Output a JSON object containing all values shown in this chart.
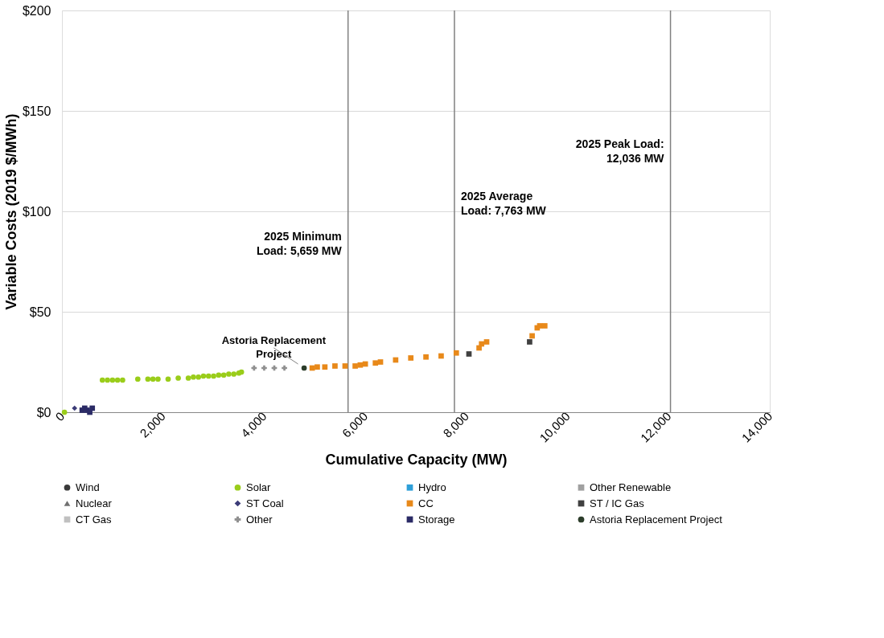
{
  "chart_data": {
    "type": "scatter",
    "xlabel": "Cumulative Capacity (MW)",
    "ylabel": "Variable Costs (2019 $/MWh)",
    "xlim": [
      0,
      14000
    ],
    "xticks": [
      0,
      {
        "value": 2000,
        "label": "2,000"
      },
      {
        "value": 4000,
        "label": "4,000"
      },
      {
        "value": 6000,
        "label": "6,000"
      },
      {
        "value": 8000,
        "label": "8,000"
      },
      {
        "value": 10000,
        "label": "10,000"
      },
      {
        "value": 12000,
        "label": "12,000"
      },
      {
        "value": 14000,
        "label": "14,000"
      }
    ],
    "ylim": [
      0,
      200
    ],
    "yticks": [
      {
        "value": 0,
        "label": "$0"
      },
      {
        "value": 50,
        "label": "$50"
      },
      {
        "value": 100,
        "label": "$100"
      },
      {
        "value": 150,
        "label": "$150"
      },
      {
        "value": 200,
        "label": "$200"
      }
    ],
    "grid": "y",
    "legend": "bottom",
    "ref_lines": [
      {
        "axis": "x",
        "value": 5659,
        "label": "2025 Minimum Load: 5,659 MW",
        "color": "#808080"
      },
      {
        "axis": "x",
        "value": 7763,
        "label": "2025 Average Load: 7,763 MW",
        "color": "#808080"
      },
      {
        "axis": "x",
        "value": 12036,
        "label": "2025 Peak Load: 12,036 MW",
        "color": "#808080"
      }
    ],
    "annotations": [
      {
        "text": "Astoria Replacement Project",
        "x": 4790,
        "y": 22
      }
    ],
    "series": [
      {
        "name": "Wind",
        "color": "#3a3a3a",
        "marker": "circle"
      },
      {
        "name": "Solar",
        "color": "#9acd1a",
        "marker": "circle",
        "x": [
          50,
          800,
          900,
          1000,
          1100,
          1200,
          1500,
          1700,
          1800,
          1900,
          2100,
          2300,
          2500,
          2600,
          2700,
          2800,
          2900,
          3000,
          3100,
          3200,
          3300,
          3400,
          3500,
          3550
        ],
        "values": [
          0,
          16,
          16,
          16,
          16,
          16,
          16.5,
          16.5,
          16.5,
          16.5,
          16.5,
          17,
          17,
          17.5,
          17.5,
          18,
          18,
          18,
          18.5,
          18.5,
          19,
          19,
          19.5,
          20
        ]
      },
      {
        "name": "Hydro",
        "color": "#2e9fd8",
        "marker": "square"
      },
      {
        "name": "Other Renewable",
        "color": "#a0a0a0",
        "marker": "square"
      },
      {
        "name": "Nuclear",
        "color": "#707070",
        "marker": "triangle"
      },
      {
        "name": "ST Coal",
        "color": "#3c3c78",
        "marker": "diamond",
        "x": [
          250
        ],
        "values": [
          2
        ]
      },
      {
        "name": "CC",
        "color": "#e8891a",
        "marker": "square",
        "x": [
          4950,
          5050,
          5200,
          5400,
          5600,
          5800,
          5900,
          6000,
          6200,
          6300,
          6600,
          6900,
          7200,
          7500,
          7800,
          8250,
          8300,
          8400,
          9300,
          9400,
          9450,
          9550
        ],
        "values": [
          22,
          22.5,
          22.5,
          23,
          23,
          23,
          23.5,
          24,
          24.5,
          25,
          26,
          27,
          27.5,
          28,
          29.5,
          32,
          34,
          35,
          38,
          42,
          43,
          43
        ]
      },
      {
        "name": "ST / IC Gas",
        "color": "#404040",
        "marker": "square",
        "x": [
          8050,
          9250
        ],
        "values": [
          29,
          35
        ]
      },
      {
        "name": "CT Gas",
        "color": "#c0c0c0",
        "marker": "square"
      },
      {
        "name": "Other",
        "color": "#909090",
        "marker": "cross",
        "x": [
          3800,
          4000,
          4200,
          4400
        ],
        "values": [
          22,
          22,
          22,
          22
        ]
      },
      {
        "name": "Storage",
        "color": "#2b2b66",
        "marker": "square",
        "x": [
          400,
          450,
          500,
          550,
          600
        ],
        "values": [
          1,
          2,
          1,
          0,
          2
        ]
      },
      {
        "name": "Astoria Replacement Project",
        "color": "#2c3d2a",
        "marker": "circle",
        "x": [
          4790
        ],
        "values": [
          22
        ]
      }
    ]
  }
}
